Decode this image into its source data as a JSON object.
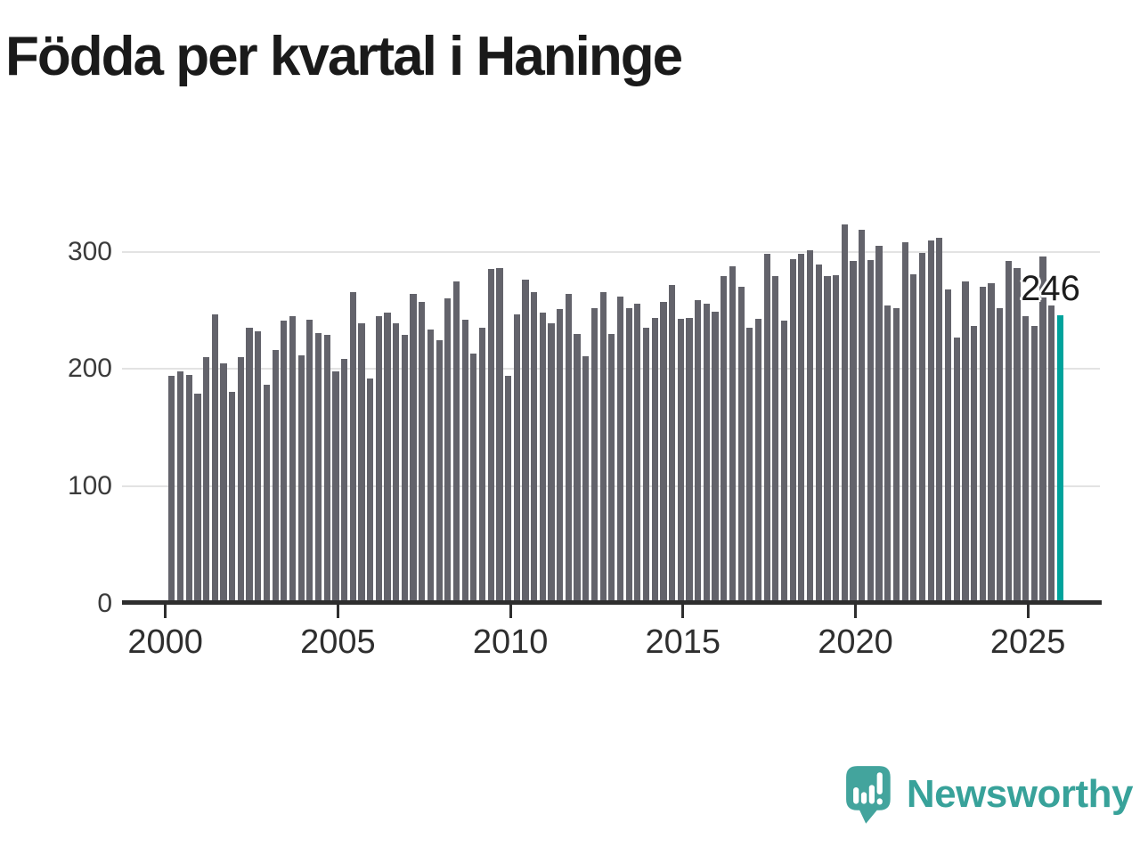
{
  "title": "Födda per kvartal i Haninge",
  "chart_data": {
    "type": "bar",
    "title": "Födda per kvartal i Haninge",
    "frequency": "quarterly",
    "x_start": "2000 Q1",
    "x_end": "2025 Q4",
    "values": [
      194,
      198,
      195,
      179,
      210,
      247,
      205,
      181,
      210,
      235,
      232,
      187,
      216,
      241,
      245,
      212,
      242,
      231,
      229,
      198,
      209,
      266,
      239,
      192,
      245,
      248,
      239,
      229,
      264,
      257,
      234,
      225,
      260,
      275,
      242,
      213,
      235,
      285,
      286,
      194,
      247,
      276,
      266,
      248,
      239,
      251,
      264,
      230,
      211,
      252,
      266,
      230,
      262,
      252,
      256,
      235,
      244,
      257,
      272,
      243,
      244,
      259,
      256,
      249,
      279,
      288,
      270,
      235,
      243,
      298,
      279,
      241,
      294,
      298,
      301,
      289,
      279,
      280,
      323,
      292,
      319,
      293,
      305,
      254,
      252,
      308,
      281,
      299,
      310,
      312,
      268,
      227,
      275,
      237,
      270,
      273,
      252,
      292,
      286,
      245,
      237,
      296,
      254,
      246
    ],
    "highlight_index": 103,
    "highlight_value": 246,
    "highlight_label": "246",
    "y_ticks": [
      0,
      100,
      200,
      300
    ],
    "x_ticks": [
      2000,
      2005,
      2010,
      2015,
      2020,
      2025
    ],
    "ylim": [
      0,
      340
    ],
    "grid": true,
    "legend": false,
    "bar_color": "#63636b",
    "highlight_color": "#00a39c",
    "axis_color": "#2e2e2e",
    "gridline_color": "#e3e3e3"
  },
  "footer": {
    "brand": "Newsworthy",
    "brand_color": "#38a29a"
  }
}
